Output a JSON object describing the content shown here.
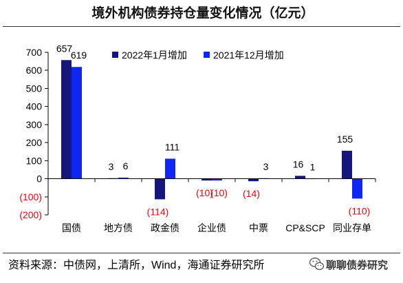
{
  "chart_data": {
    "type": "bar",
    "title": "境外机构债券持仓量变化情况（亿元）",
    "categories": [
      "国债",
      "地方债",
      "政金债",
      "企业债",
      "中票",
      "CP&SCP",
      "同业存单"
    ],
    "series": [
      {
        "name": "2022年1月增加",
        "color": "#15157c",
        "values": [
          657,
          3,
          -114,
          -10,
          -14,
          16,
          155
        ],
        "labels": [
          "657",
          "3",
          "(114)",
          "(10)",
          "(14)",
          "16",
          "155"
        ]
      },
      {
        "name": "2021年12月增加",
        "color": "#1026f2",
        "values": [
          619,
          6,
          111,
          -10,
          3,
          1,
          -110
        ],
        "labels": [
          "619",
          "6",
          "111",
          "(10)",
          "3",
          "1",
          "(110)"
        ]
      }
    ],
    "ylim": [
      -200,
      700
    ],
    "yticks": [
      700,
      600,
      500,
      400,
      300,
      200,
      100,
      0,
      -100,
      -200
    ],
    "ytick_labels": [
      "700",
      "600",
      "500",
      "400",
      "300",
      "200",
      "100",
      "0",
      "(100)",
      "(200)"
    ],
    "negative_label_color": "#e60012",
    "grid": false,
    "legend_position": "top-center"
  },
  "footer": {
    "source": "资料来源：中债网，上清所，Wind，海通证券研究所",
    "watermark": "聊聊债券研究",
    "watermark_icon": "wechat-icon"
  }
}
